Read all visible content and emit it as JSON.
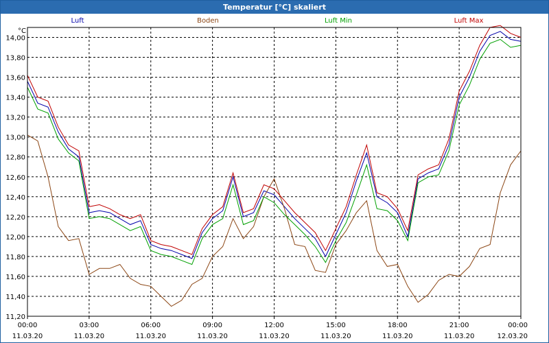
{
  "window": {
    "title": "Temperatur [°C] skaliert"
  },
  "chart_data": {
    "type": "line",
    "title": "Temperatur [°C] skaliert",
    "ylabel": "°C",
    "xlabel": "",
    "ylim": [
      11.2,
      14.1
    ],
    "xlim": [
      0,
      24
    ],
    "grid": true,
    "yticks": [
      "11,20",
      "11,40",
      "11,60",
      "11,80",
      "12,00",
      "12,20",
      "12,40",
      "12,60",
      "12,80",
      "13,00",
      "13,20",
      "13,40",
      "13,60",
      "13,80",
      "14,00"
    ],
    "xticks": [
      {
        "time": "00:00",
        "date": "11.03.20"
      },
      {
        "time": "03:00",
        "date": "11.03.20"
      },
      {
        "time": "06:00",
        "date": "11.03.20"
      },
      {
        "time": "09:00",
        "date": "11.03.20"
      },
      {
        "time": "12:00",
        "date": "11.03.20"
      },
      {
        "time": "15:00",
        "date": "11.03.20"
      },
      {
        "time": "18:00",
        "date": "11.03.20"
      },
      {
        "time": "21:00",
        "date": "11.03.20"
      },
      {
        "time": "00:00",
        "date": "12.03.20"
      }
    ],
    "x": [
      0,
      0.5,
      1,
      1.5,
      2,
      2.5,
      3,
      3.5,
      4,
      4.5,
      5,
      5.5,
      6,
      6.5,
      7,
      7.5,
      8,
      8.5,
      9,
      9.5,
      10,
      10.5,
      11,
      11.5,
      12,
      12.5,
      13,
      13.5,
      14,
      14.5,
      15,
      15.5,
      16,
      16.5,
      17,
      17.5,
      18,
      18.5,
      19,
      19.5,
      20,
      20.5,
      21,
      21.5,
      22,
      22.5,
      23,
      23.5,
      24
    ],
    "series": [
      {
        "name": "Luft",
        "color": "#0000aa",
        "values": [
          13.56,
          13.34,
          13.3,
          13.05,
          12.88,
          12.8,
          12.24,
          12.26,
          12.24,
          12.18,
          12.12,
          12.16,
          11.92,
          11.88,
          11.86,
          11.82,
          11.78,
          12.04,
          12.18,
          12.26,
          12.6,
          12.2,
          12.24,
          12.46,
          12.42,
          12.3,
          12.18,
          12.08,
          11.98,
          11.8,
          12.02,
          12.24,
          12.56,
          12.84,
          12.4,
          12.34,
          12.24,
          12.0,
          12.58,
          12.64,
          12.68,
          12.92,
          13.4,
          13.6,
          13.86,
          14.02,
          14.06,
          13.98,
          13.96
        ]
      },
      {
        "name": "Boden",
        "color": "#8b4513",
        "values": [
          13.02,
          12.96,
          12.6,
          12.1,
          11.96,
          11.98,
          11.62,
          11.68,
          11.68,
          11.72,
          11.58,
          11.52,
          11.5,
          11.4,
          11.3,
          11.36,
          11.52,
          11.58,
          11.8,
          11.9,
          12.18,
          11.98,
          12.1,
          12.4,
          12.58,
          12.28,
          11.92,
          11.9,
          11.66,
          11.64,
          11.92,
          12.06,
          12.24,
          12.36,
          11.86,
          11.7,
          11.72,
          11.5,
          11.34,
          11.42,
          11.56,
          11.62,
          11.6,
          11.7,
          11.88,
          11.92,
          12.44,
          12.72,
          12.86
        ]
      },
      {
        "name": "Luft Min",
        "color": "#00a000",
        "values": [
          13.5,
          13.28,
          13.24,
          12.98,
          12.84,
          12.76,
          12.18,
          12.2,
          12.18,
          12.12,
          12.06,
          12.1,
          11.86,
          11.82,
          11.8,
          11.76,
          11.72,
          11.98,
          12.12,
          12.18,
          12.52,
          12.12,
          12.16,
          12.4,
          12.34,
          12.22,
          12.12,
          12.02,
          11.9,
          11.74,
          11.96,
          12.14,
          12.42,
          12.72,
          12.28,
          12.26,
          12.16,
          11.96,
          12.54,
          12.6,
          12.62,
          12.86,
          13.32,
          13.52,
          13.78,
          13.94,
          13.98,
          13.9,
          13.92
        ]
      },
      {
        "name": "Luft Max",
        "color": "#c00000",
        "values": [
          13.62,
          13.4,
          13.36,
          13.1,
          12.92,
          12.86,
          12.3,
          12.32,
          12.28,
          12.22,
          12.18,
          12.22,
          11.96,
          11.92,
          11.9,
          11.86,
          11.82,
          12.08,
          12.22,
          12.3,
          12.64,
          12.24,
          12.28,
          12.52,
          12.48,
          12.36,
          12.24,
          12.14,
          12.04,
          11.86,
          12.08,
          12.3,
          12.62,
          12.92,
          12.44,
          12.4,
          12.28,
          12.06,
          12.62,
          12.68,
          12.72,
          12.98,
          13.46,
          13.66,
          13.92,
          14.1,
          14.12,
          14.04,
          14.0
        ]
      }
    ]
  }
}
